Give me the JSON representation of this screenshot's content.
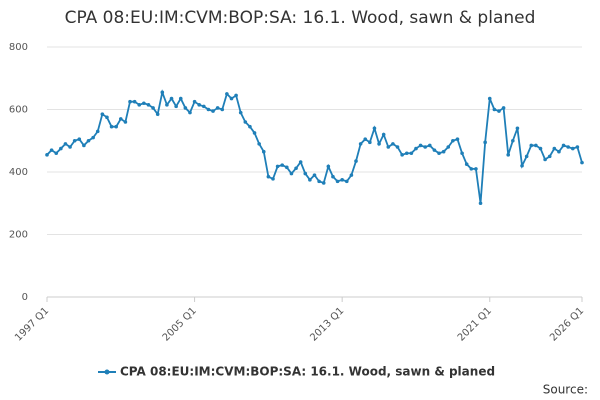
{
  "chart_data": {
    "type": "line",
    "title": "CPA 08:EU:IM:CVM:BOP:SA: 16.1. Wood, sawn & planed",
    "source": "Source:",
    "categories": [
      "1997 Q1",
      null,
      null,
      null,
      null,
      null,
      null,
      null,
      null,
      null,
      null,
      null,
      null,
      null,
      null,
      null,
      null,
      null,
      null,
      null,
      null,
      null,
      null,
      null,
      null,
      null,
      null,
      null,
      null,
      null,
      null,
      null,
      "2005 Q1",
      null,
      null,
      null,
      null,
      null,
      null,
      null,
      null,
      null,
      null,
      null,
      null,
      null,
      null,
      null,
      null,
      null,
      null,
      null,
      null,
      null,
      null,
      null,
      null,
      null,
      null,
      null,
      null,
      null,
      null,
      null,
      "2013 Q1",
      null,
      null,
      null,
      null,
      null,
      null,
      null,
      null,
      null,
      null,
      null,
      null,
      null,
      null,
      null,
      null,
      null,
      null,
      null,
      null,
      null,
      null,
      null,
      null,
      null,
      null,
      null,
      null,
      null,
      null,
      null,
      "2021 Q1",
      null,
      null,
      null,
      null,
      null,
      null,
      null,
      null,
      null,
      null,
      null,
      null,
      null,
      null,
      null,
      null,
      null,
      null,
      null,
      "2026 Q1"
    ],
    "series": [
      {
        "name": "CPA 08:EU:IM:CVM:BOP:SA: 16.1. Wood, sawn & planed",
        "color": "#1f7fb8",
        "values": [
          455,
          470,
          460,
          475,
          490,
          480,
          500,
          505,
          485,
          500,
          510,
          530,
          585,
          575,
          545,
          545,
          570,
          560,
          625,
          625,
          615,
          620,
          615,
          605,
          585,
          655,
          615,
          635,
          610,
          635,
          605,
          590,
          625,
          615,
          610,
          600,
          595,
          605,
          600,
          650,
          635,
          645,
          590,
          560,
          545,
          525,
          490,
          465,
          385,
          378,
          418,
          422,
          415,
          395,
          412,
          432,
          395,
          375,
          390,
          370,
          365,
          418,
          385,
          370,
          375,
          370,
          390,
          435,
          490,
          505,
          495,
          540,
          490,
          520,
          480,
          490,
          480,
          455,
          460,
          460,
          475,
          485,
          480,
          485,
          470,
          460,
          465,
          480,
          500,
          505,
          460,
          425,
          410,
          410,
          300,
          495,
          635,
          600,
          595,
          605,
          455,
          500,
          540,
          420,
          450,
          485,
          485,
          475,
          440,
          450,
          475,
          465,
          485,
          480,
          475,
          480,
          430
        ]
      }
    ],
    "ylim": [
      0,
      800
    ],
    "yticks": [
      0,
      200,
      400,
      600,
      800
    ],
    "grid": true
  }
}
